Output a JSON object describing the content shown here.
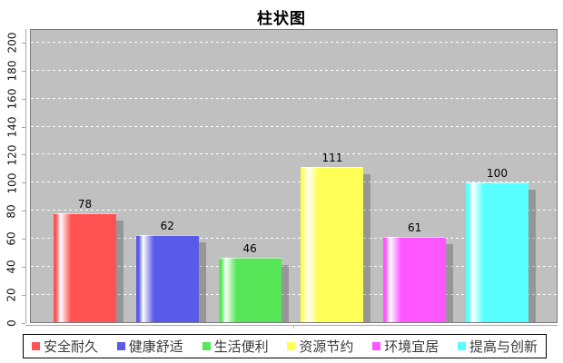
{
  "chart_data": {
    "type": "bar",
    "title": "柱状图",
    "categories": [
      "安全耐久",
      "健康舒适",
      "生活便利",
      "资源节约",
      "环境宜居",
      "提高与创新"
    ],
    "values": [
      78,
      62,
      46,
      111,
      61,
      100
    ],
    "colors": [
      "#ff5252",
      "#5a5ae8",
      "#57e657",
      "#ffff57",
      "#ff57ff",
      "#57ffff"
    ],
    "ylim": [
      0,
      210
    ],
    "yticks": [
      0,
      20,
      40,
      60,
      80,
      100,
      120,
      140,
      160,
      180,
      200
    ],
    "grid": "horizontal white dashed lines",
    "legend_position": "bottom",
    "plot_background": "#c0c0c0",
    "axis_color": "#a8a8a8",
    "label_color": "#000000",
    "legend_text_color": "#3a3a3a",
    "legend_border_color": "#000000"
  }
}
